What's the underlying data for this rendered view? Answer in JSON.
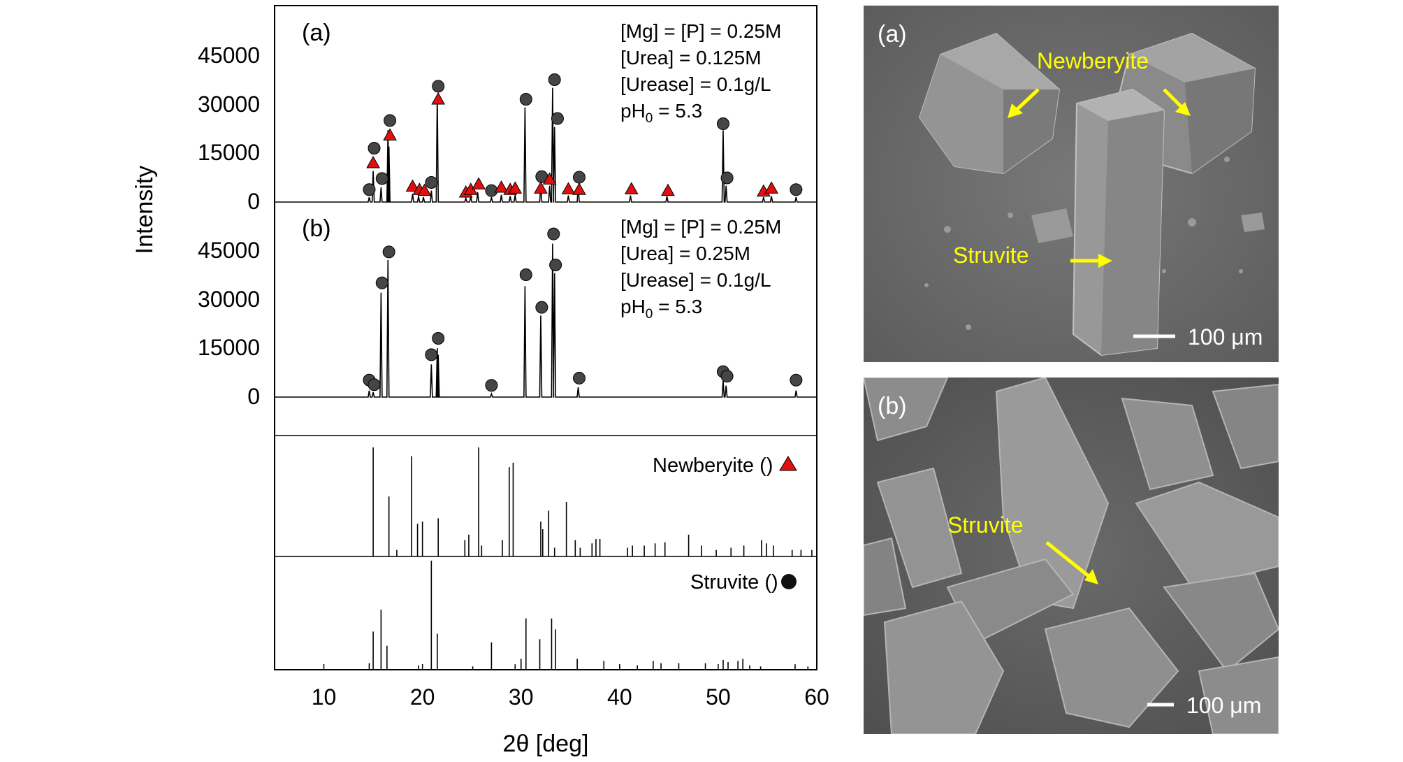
{
  "chart_data": {
    "type": "line",
    "xlabel": "2θ [deg]",
    "ylabel": "Intensity",
    "xlim": [
      5,
      60
    ],
    "xticks": [
      "10",
      "20",
      "30",
      "40",
      "50",
      "60"
    ],
    "panels": [
      {
        "label": "(a)",
        "ylim": [
          0,
          58000
        ],
        "yticks": [
          "0",
          "15000",
          "30000",
          "45000"
        ],
        "conditions": [
          "[Mg] = [P] = 0.25M",
          "[Urea] = 0.125M",
          "[Urease] = 0.1g/L",
          "pH",
          "0",
          " = 5.3"
        ],
        "peaks": [
          [
            14.6,
            1500
          ],
          [
            15.0,
            9500
          ],
          [
            15.8,
            4500
          ],
          [
            16.5,
            22000
          ],
          [
            16.6,
            17000
          ],
          [
            19.0,
            2500
          ],
          [
            19.6,
            1800
          ],
          [
            20.1,
            1500
          ],
          [
            20.9,
            3500
          ],
          [
            21.5,
            33000
          ],
          [
            24.4,
            1200
          ],
          [
            24.9,
            1800
          ],
          [
            25.6,
            3000
          ],
          [
            27.0,
            1500
          ],
          [
            28.0,
            2200
          ],
          [
            28.9,
            1800
          ],
          [
            29.4,
            2200
          ],
          [
            30.4,
            29000
          ],
          [
            32.0,
            5500
          ],
          [
            32.9,
            5000
          ],
          [
            33.2,
            35000
          ],
          [
            33.4,
            23000
          ],
          [
            34.8,
            2000
          ],
          [
            35.8,
            5000
          ],
          [
            41.1,
            2000
          ],
          [
            44.8,
            1800
          ],
          [
            50.5,
            22000
          ],
          [
            50.8,
            5000
          ],
          [
            54.6,
            1500
          ],
          [
            55.4,
            1800
          ],
          [
            57.9,
            1500
          ]
        ],
        "struvite_markers": [
          [
            14.6,
            3800
          ],
          [
            15.1,
            16500
          ],
          [
            15.9,
            7200
          ],
          [
            16.7,
            25000
          ],
          [
            20.9,
            6000
          ],
          [
            21.6,
            35500
          ],
          [
            27.0,
            3500
          ],
          [
            30.5,
            31500
          ],
          [
            32.1,
            7800
          ],
          [
            33.4,
            37500
          ],
          [
            33.7,
            25600
          ],
          [
            35.9,
            7600
          ],
          [
            50.5,
            24000
          ],
          [
            50.9,
            7400
          ],
          [
            57.9,
            3800
          ]
        ],
        "newberyite_markers": [
          [
            15.0,
            12000
          ],
          [
            16.7,
            20500
          ],
          [
            19.0,
            4800
          ],
          [
            19.7,
            3800
          ],
          [
            20.2,
            3500
          ],
          [
            21.6,
            31500
          ],
          [
            24.4,
            3000
          ],
          [
            24.9,
            3800
          ],
          [
            25.7,
            5500
          ],
          [
            28.0,
            4500
          ],
          [
            28.9,
            3800
          ],
          [
            29.4,
            4200
          ],
          [
            32.0,
            4200
          ],
          [
            32.9,
            7000
          ],
          [
            34.8,
            4000
          ],
          [
            35.9,
            3800
          ],
          [
            41.2,
            4000
          ],
          [
            44.9,
            3500
          ],
          [
            54.6,
            3300
          ],
          [
            55.4,
            4200
          ]
        ]
      },
      {
        "label": "(b)",
        "ylim": [
          0,
          58000
        ],
        "yticks": [
          "0",
          "15000",
          "30000",
          "45000"
        ],
        "conditions": [
          "[Mg] = [P] = 0.25M",
          "[Urea] = 0.25M",
          "[Urease] = 0.1g/L",
          "pH",
          "0",
          " = 5.3"
        ],
        "peaks": [
          [
            14.6,
            2000
          ],
          [
            15.0,
            1500
          ],
          [
            15.8,
            32000
          ],
          [
            16.5,
            42000
          ],
          [
            20.9,
            10000
          ],
          [
            21.5,
            15000
          ],
          [
            21.6,
            13000
          ],
          [
            27.0,
            1000
          ],
          [
            30.4,
            34000
          ],
          [
            32.0,
            25000
          ],
          [
            33.2,
            47000
          ],
          [
            33.4,
            38000
          ],
          [
            35.8,
            3000
          ],
          [
            50.5,
            5000
          ],
          [
            50.8,
            3500
          ],
          [
            57.9,
            2000
          ]
        ],
        "struvite_markers": [
          [
            14.6,
            5200
          ],
          [
            15.1,
            3800
          ],
          [
            15.9,
            35000
          ],
          [
            16.6,
            44500
          ],
          [
            20.9,
            13000
          ],
          [
            21.6,
            18000
          ],
          [
            27.0,
            3600
          ],
          [
            30.5,
            37500
          ],
          [
            32.1,
            27500
          ],
          [
            33.3,
            50000
          ],
          [
            33.5,
            40500
          ],
          [
            35.9,
            5800
          ],
          [
            50.5,
            7800
          ],
          [
            50.9,
            6400
          ],
          [
            57.9,
            5200
          ]
        ]
      }
    ],
    "references": [
      {
        "name": "Newberyite",
        "legend": "Newberyite (",
        "legend_end": ")",
        "marker": "triangle",
        "sticks": [
          [
            15.0,
            1.0
          ],
          [
            16.6,
            0.55
          ],
          [
            17.4,
            0.06
          ],
          [
            18.9,
            0.92
          ],
          [
            19.5,
            0.3
          ],
          [
            20.0,
            0.32
          ],
          [
            21.6,
            0.35
          ],
          [
            24.3,
            0.15
          ],
          [
            24.7,
            0.2
          ],
          [
            25.7,
            1.0
          ],
          [
            26.0,
            0.1
          ],
          [
            28.1,
            0.15
          ],
          [
            28.8,
            0.82
          ],
          [
            29.2,
            0.86
          ],
          [
            32.0,
            0.32
          ],
          [
            32.2,
            0.25
          ],
          [
            32.8,
            0.42
          ],
          [
            33.4,
            0.08
          ],
          [
            34.6,
            0.5
          ],
          [
            35.5,
            0.15
          ],
          [
            36.0,
            0.08
          ],
          [
            37.2,
            0.12
          ],
          [
            37.6,
            0.16
          ],
          [
            38.0,
            0.16
          ],
          [
            40.8,
            0.08
          ],
          [
            41.3,
            0.1
          ],
          [
            42.5,
            0.1
          ],
          [
            43.6,
            0.12
          ],
          [
            44.6,
            0.13
          ],
          [
            47.0,
            0.2
          ],
          [
            48.3,
            0.1
          ],
          [
            49.8,
            0.06
          ],
          [
            51.3,
            0.08
          ],
          [
            52.6,
            0.1
          ],
          [
            54.4,
            0.15
          ],
          [
            54.9,
            0.12
          ],
          [
            55.6,
            0.1
          ],
          [
            57.5,
            0.06
          ],
          [
            58.4,
            0.06
          ],
          [
            59.5,
            0.06
          ]
        ]
      },
      {
        "name": "Struvite",
        "legend": "Struvite (",
        "legend_end": ")",
        "marker": "circle",
        "sticks": [
          [
            14.6,
            0.06
          ],
          [
            15.0,
            0.35
          ],
          [
            15.8,
            0.55
          ],
          [
            16.4,
            0.22
          ],
          [
            19.6,
            0.04
          ],
          [
            20.9,
            1.0
          ],
          [
            21.5,
            0.33
          ],
          [
            25.1,
            0.03
          ],
          [
            27.0,
            0.25
          ],
          [
            29.4,
            0.05
          ],
          [
            30.0,
            0.1
          ],
          [
            30.5,
            0.47
          ],
          [
            31.9,
            0.28
          ],
          [
            33.1,
            0.47
          ],
          [
            33.5,
            0.37
          ],
          [
            35.7,
            0.1
          ],
          [
            38.4,
            0.08
          ],
          [
            40.0,
            0.04
          ],
          [
            41.8,
            0.04
          ],
          [
            43.4,
            0.08
          ],
          [
            44.2,
            0.06
          ],
          [
            46.0,
            0.06
          ],
          [
            48.7,
            0.06
          ],
          [
            50.5,
            0.09
          ],
          [
            51.0,
            0.07
          ],
          [
            52.0,
            0.08
          ],
          [
            52.5,
            0.1
          ],
          [
            53.2,
            0.04
          ],
          [
            54.3,
            0.03
          ],
          [
            57.8,
            0.05
          ],
          [
            59.1,
            0.03
          ]
        ]
      }
    ]
  },
  "micrographs": [
    {
      "label": "(a)",
      "annotations": [
        "Newberyite",
        "Struvite"
      ],
      "scale_bar": "100 μm",
      "accent_color": "#FFFF00"
    },
    {
      "label": "(b)",
      "annotations": [
        "Struvite"
      ],
      "scale_bar": "100 μm",
      "accent_color": "#FFFF00"
    }
  ],
  "colors": {
    "struvite_marker": "#454545",
    "newberyite_marker": "#E01010",
    "annotation_text": "#FFFF00"
  }
}
